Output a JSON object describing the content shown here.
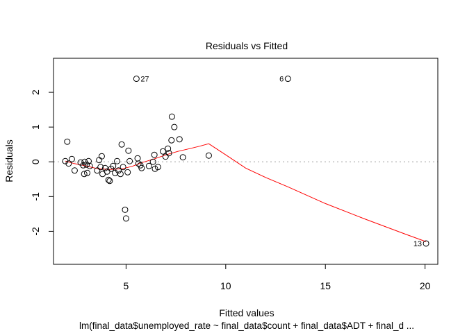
{
  "chart_data": {
    "type": "scatter",
    "title": "Residuals vs Fitted",
    "xlabel": "Fitted values",
    "ylabel": "Residuals",
    "subtitle": "lm(final_data$unemployed_rate ~ final_data$count + final_data$ADT + final_d ...",
    "xlim": [
      1.36,
      20.64
    ],
    "ylim": [
      -2.95,
      2.98
    ],
    "x_ticks": [
      5,
      10,
      15,
      20
    ],
    "y_ticks": [
      -2,
      -1,
      0,
      1,
      2
    ],
    "zero_line": {
      "y": 0,
      "style": "dotted",
      "color": "#999999"
    },
    "point_color": "#000000",
    "smooth_color": "#ff0000",
    "points": [
      {
        "x": 1.95,
        "y": 0.02
      },
      {
        "x": 2.05,
        "y": 0.58
      },
      {
        "x": 2.12,
        "y": -0.05
      },
      {
        "x": 2.28,
        "y": 0.08
      },
      {
        "x": 2.42,
        "y": -0.25
      },
      {
        "x": 2.72,
        "y": -0.02
      },
      {
        "x": 2.85,
        "y": -0.1
      },
      {
        "x": 2.9,
        "y": -0.35
      },
      {
        "x": 2.92,
        "y": 0.0
      },
      {
        "x": 3.02,
        "y": -0.08
      },
      {
        "x": 3.05,
        "y": -0.32
      },
      {
        "x": 3.12,
        "y": 0.02
      },
      {
        "x": 3.18,
        "y": -0.12
      },
      {
        "x": 3.55,
        "y": -0.25
      },
      {
        "x": 3.65,
        "y": 0.05
      },
      {
        "x": 3.72,
        "y": -0.15
      },
      {
        "x": 3.78,
        "y": 0.16
      },
      {
        "x": 3.82,
        "y": -0.35
      },
      {
        "x": 3.95,
        "y": -0.18
      },
      {
        "x": 4.05,
        "y": -0.28
      },
      {
        "x": 4.12,
        "y": -0.52
      },
      {
        "x": 4.18,
        "y": -0.55
      },
      {
        "x": 4.25,
        "y": -0.2
      },
      {
        "x": 4.35,
        "y": -0.12
      },
      {
        "x": 4.45,
        "y": -0.32
      },
      {
        "x": 4.55,
        "y": 0.02
      },
      {
        "x": 4.62,
        "y": -0.25
      },
      {
        "x": 4.72,
        "y": -0.35
      },
      {
        "x": 4.78,
        "y": 0.5
      },
      {
        "x": 4.85,
        "y": -0.15
      },
      {
        "x": 4.95,
        "y": -1.38
      },
      {
        "x": 5.0,
        "y": -1.63
      },
      {
        "x": 5.08,
        "y": -0.3
      },
      {
        "x": 5.12,
        "y": 0.32
      },
      {
        "x": 5.18,
        "y": 0.02
      },
      {
        "x": 5.58,
        "y": 0.1
      },
      {
        "x": 5.62,
        "y": -0.05
      },
      {
        "x": 5.72,
        "y": -0.1
      },
      {
        "x": 5.78,
        "y": -0.18
      },
      {
        "x": 6.15,
        "y": -0.12
      },
      {
        "x": 6.35,
        "y": 0.0
      },
      {
        "x": 6.42,
        "y": 0.2
      },
      {
        "x": 6.45,
        "y": -0.2
      },
      {
        "x": 6.6,
        "y": -0.15
      },
      {
        "x": 6.85,
        "y": 0.3
      },
      {
        "x": 6.98,
        "y": 0.15
      },
      {
        "x": 7.1,
        "y": 0.38
      },
      {
        "x": 7.15,
        "y": 0.25
      },
      {
        "x": 7.28,
        "y": 0.62
      },
      {
        "x": 7.3,
        "y": 1.3
      },
      {
        "x": 7.42,
        "y": 1.0
      },
      {
        "x": 7.68,
        "y": 0.65
      },
      {
        "x": 7.85,
        "y": 0.13
      },
      {
        "x": 9.15,
        "y": 0.18
      },
      {
        "x": 5.52,
        "y": 2.39,
        "label": "27"
      },
      {
        "x": 13.12,
        "y": 2.39,
        "label": "6"
      },
      {
        "x": 20.05,
        "y": -2.35,
        "label": "13"
      }
    ],
    "smooth_line": [
      {
        "x": 1.95,
        "y": 0.02
      },
      {
        "x": 2.4,
        "y": -0.05
      },
      {
        "x": 3.0,
        "y": -0.12
      },
      {
        "x": 3.6,
        "y": -0.2
      },
      {
        "x": 4.2,
        "y": -0.22
      },
      {
        "x": 4.8,
        "y": -0.2
      },
      {
        "x": 5.3,
        "y": -0.13
      },
      {
        "x": 5.8,
        "y": -0.02
      },
      {
        "x": 6.4,
        "y": 0.08
      },
      {
        "x": 7.0,
        "y": 0.2
      },
      {
        "x": 7.6,
        "y": 0.3
      },
      {
        "x": 8.2,
        "y": 0.38
      },
      {
        "x": 8.7,
        "y": 0.45
      },
      {
        "x": 9.15,
        "y": 0.52
      },
      {
        "x": 10.0,
        "y": 0.2
      },
      {
        "x": 11.0,
        "y": -0.18
      },
      {
        "x": 12.0,
        "y": -0.45
      },
      {
        "x": 13.12,
        "y": -0.72
      },
      {
        "x": 15.0,
        "y": -1.2
      },
      {
        "x": 17.0,
        "y": -1.65
      },
      {
        "x": 19.0,
        "y": -2.08
      },
      {
        "x": 20.05,
        "y": -2.3
      }
    ]
  }
}
